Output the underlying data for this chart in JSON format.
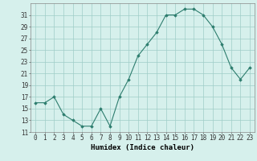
{
  "x": [
    0,
    1,
    2,
    3,
    4,
    5,
    6,
    7,
    8,
    9,
    10,
    11,
    12,
    13,
    14,
    15,
    16,
    17,
    18,
    19,
    20,
    21,
    22,
    23
  ],
  "y": [
    16,
    16,
    17,
    14,
    13,
    12,
    12,
    15,
    12,
    17,
    20,
    24,
    26,
    28,
    31,
    31,
    32,
    32,
    31,
    29,
    26,
    22,
    20,
    22
  ],
  "line_color": "#2d7d6e",
  "marker": "D",
  "marker_size": 1.8,
  "bg_color": "#d6f0ec",
  "grid_color": "#9ecdc7",
  "xlabel": "Humidex (Indice chaleur)",
  "ylim": [
    11,
    33
  ],
  "yticks": [
    11,
    13,
    15,
    17,
    19,
    21,
    23,
    25,
    27,
    29,
    31
  ],
  "xlim": [
    -0.5,
    23.5
  ],
  "tick_fontsize": 5.5,
  "xlabel_fontsize": 6.5
}
